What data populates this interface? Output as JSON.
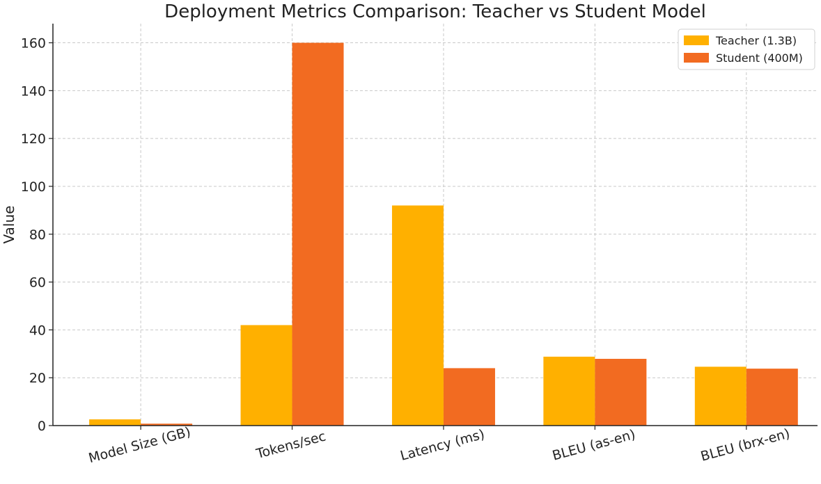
{
  "chart_data": {
    "type": "bar",
    "title": "Deployment Metrics Comparison: Teacher vs Student Model",
    "xlabel": "",
    "ylabel": "Value",
    "categories": [
      "Model Size (GB)",
      "Tokens/sec",
      "Latency (ms)",
      "BLEU (as-en)",
      "BLEU (brx-en)"
    ],
    "series": [
      {
        "name": "Teacher (1.3B)",
        "color": "#FFB000",
        "values": [
          2.6,
          42,
          92,
          28.8,
          24.6
        ]
      },
      {
        "name": "Student (400M)",
        "color": "#F26B21",
        "values": [
          0.8,
          160,
          24,
          27.9,
          23.8
        ]
      }
    ],
    "ylim": [
      0,
      168
    ],
    "yticks": [
      0,
      20,
      40,
      60,
      80,
      100,
      120,
      140,
      160
    ],
    "grid": true,
    "legend_position": "top-right"
  }
}
